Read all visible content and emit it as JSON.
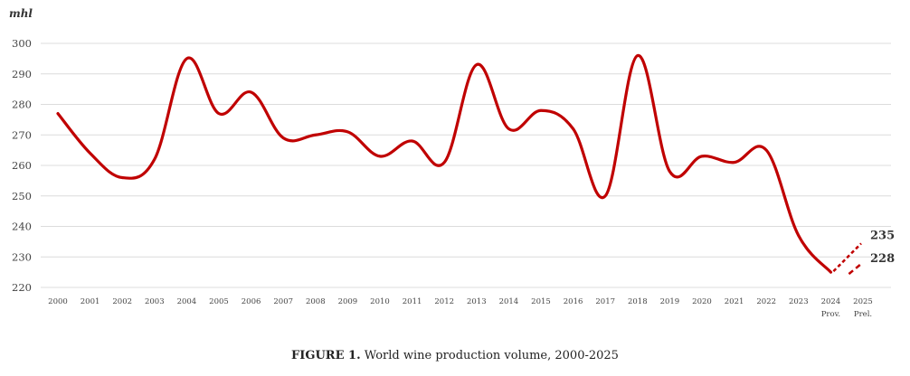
{
  "chart_data": {
    "type": "line",
    "unit_label": "mhl",
    "title": "World wine production volume, 2000-2025",
    "caption_prefix": "FIGURE 1.",
    "caption_text": "World wine production volume, 2000-2025",
    "ylim": [
      220,
      300
    ],
    "yticks": [
      220,
      230,
      240,
      250,
      260,
      270,
      280,
      290,
      300
    ],
    "categories": [
      "2000",
      "2001",
      "2002",
      "2003",
      "2004",
      "2005",
      "2006",
      "2007",
      "2008",
      "2009",
      "2010",
      "2011",
      "2012",
      "2013",
      "2014",
      "2015",
      "2016",
      "2017",
      "2018",
      "2019",
      "2020",
      "2021",
      "2022",
      "2023",
      "2024",
      "2025"
    ],
    "category_sublabels": {
      "2024": "Prov.",
      "2025": "Prel."
    },
    "series": [
      {
        "name": "World wine production",
        "values": [
          277,
          264,
          256,
          262,
          295,
          277,
          284,
          269,
          270,
          271,
          263,
          268,
          261,
          293,
          272,
          278,
          272,
          250,
          296,
          258,
          263,
          261,
          265,
          237,
          225,
          null
        ],
        "color": "#c00000"
      }
    ],
    "projection": {
      "from": {
        "category": "2024",
        "value": 225
      },
      "high": {
        "category": "2025",
        "value": 235,
        "label": "235"
      },
      "low": {
        "category": "2025",
        "value": 228,
        "label": "228"
      }
    }
  }
}
